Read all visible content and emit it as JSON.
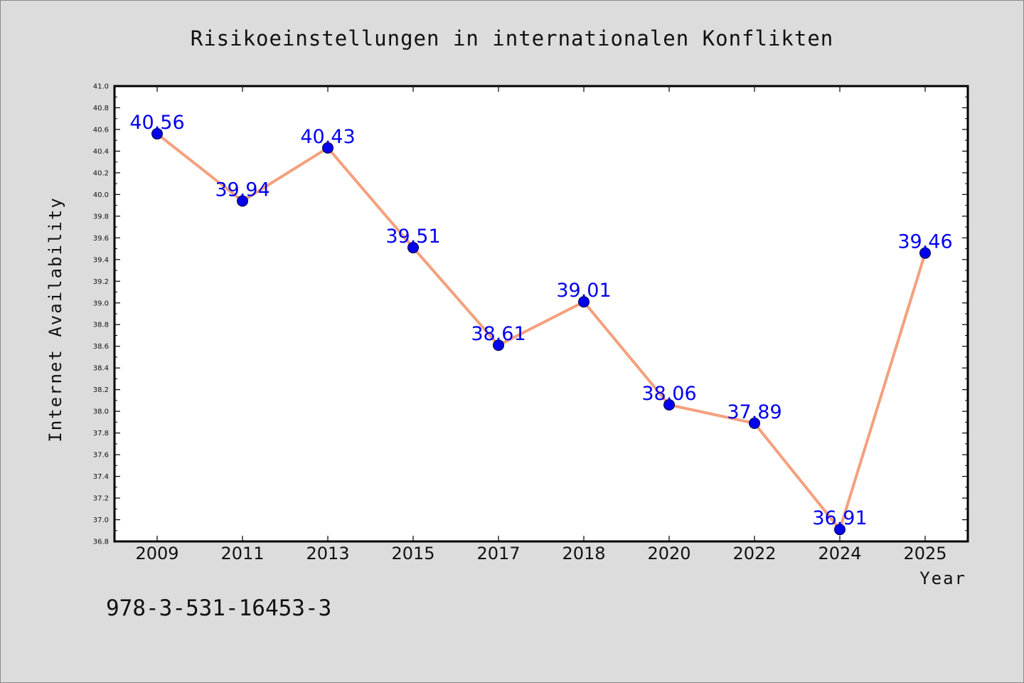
{
  "chart_data": {
    "type": "line",
    "title": "Risikoeinstellungen in internationalen Konflikten",
    "xlabel": "Year",
    "ylabel": "Internet Availability",
    "categories": [
      "2009",
      "2011",
      "2013",
      "2015",
      "2017",
      "2018",
      "2020",
      "2022",
      "2024",
      "2025"
    ],
    "series": [
      {
        "values": [
          40.56,
          39.94,
          40.43,
          39.51,
          38.61,
          39.01,
          38.06,
          37.89,
          36.91,
          39.46
        ],
        "data_labels": [
          "40.56",
          "39.94",
          "40.43",
          "39.51",
          "38.61",
          "39.01",
          "38.06",
          "37.89",
          "36.91",
          "39.46"
        ]
      }
    ],
    "ylim": [
      36.8,
      41.0
    ],
    "yticks": [
      "36.8",
      "37.0",
      "37.2",
      "37.4",
      "37.6",
      "37.8",
      "38.0",
      "38.2",
      "38.4",
      "38.6",
      "38.8",
      "39.0",
      "39.2",
      "39.4",
      "39.6",
      "39.8",
      "40.0",
      "40.2",
      "40.4",
      "40.6",
      "40.8",
      "41.0"
    ],
    "grid": false,
    "colors": {
      "line": "#f4a07e",
      "marker": "#0000ee",
      "data_label": "#0000ee",
      "background": "#dcdcdc",
      "plot_background": "#ffffff"
    }
  },
  "footnote": "978-3-531-16453-3"
}
